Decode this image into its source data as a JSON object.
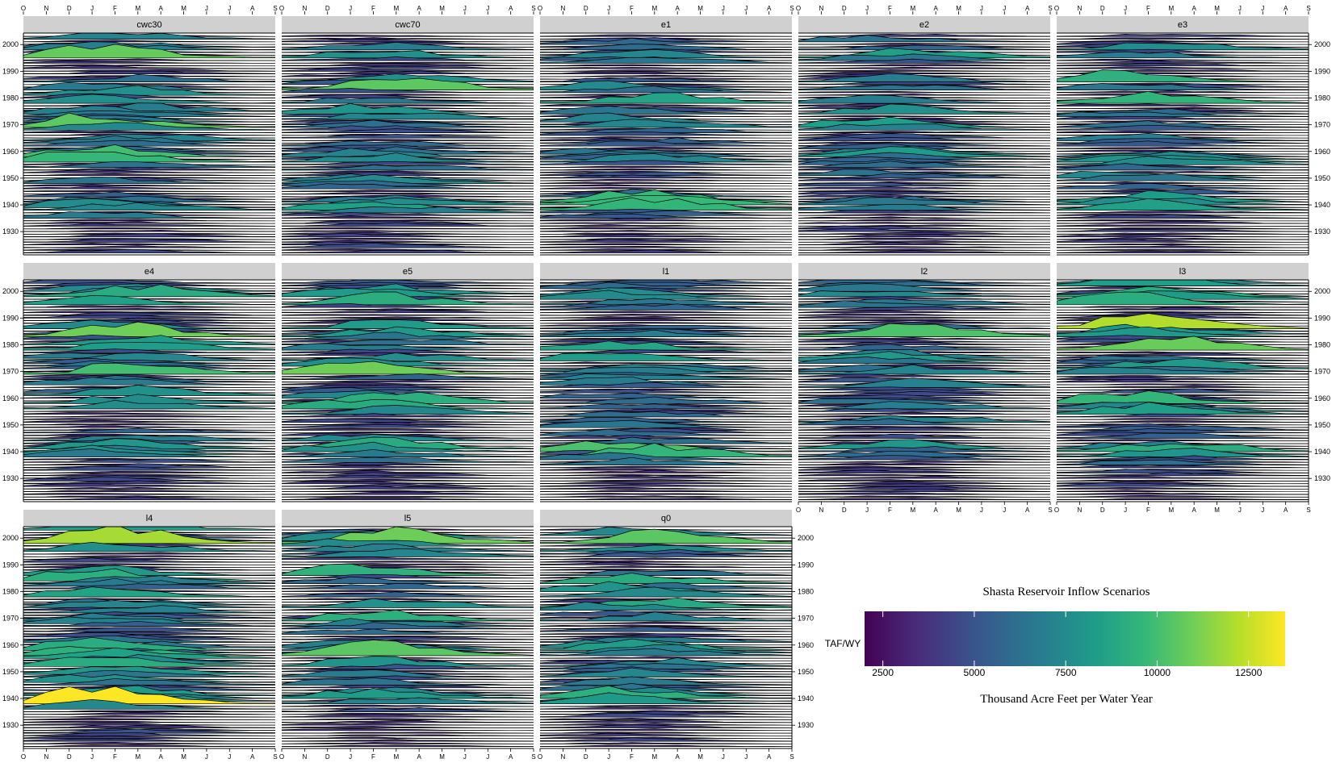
{
  "chart_data": {
    "type": "ridgeline",
    "title": "Shasta Reservoir Inflow Scenarios",
    "panels": [
      "cwc30",
      "cwc70",
      "e1",
      "e2",
      "e3",
      "e4",
      "e5",
      "l1",
      "l2",
      "l3",
      "l4",
      "l5",
      "q0"
    ],
    "x_tick_labels": [
      "O",
      "N",
      "D",
      "J",
      "F",
      "M",
      "A",
      "M",
      "J",
      "J",
      "A",
      "S"
    ],
    "y_tick_labels": [
      "1930",
      "1940",
      "1950",
      "1960",
      "1970",
      "1980",
      "1990",
      "2000"
    ],
    "years": [
      1922,
      2003
    ],
    "legend": {
      "label": "TAF/WY",
      "caption": "Thousand Acre Feet per Water Year",
      "range": [
        2000,
        13500
      ],
      "ticks": [
        "2500",
        "5000",
        "7500",
        "10000",
        "12500"
      ],
      "colormap": "viridis",
      "colors": [
        "#440154",
        "#482878",
        "#3e4989",
        "#31688e",
        "#26828e",
        "#1f9e89",
        "#35b779",
        "#6ece58",
        "#b5de2b",
        "#fde725"
      ]
    },
    "grid": false
  }
}
